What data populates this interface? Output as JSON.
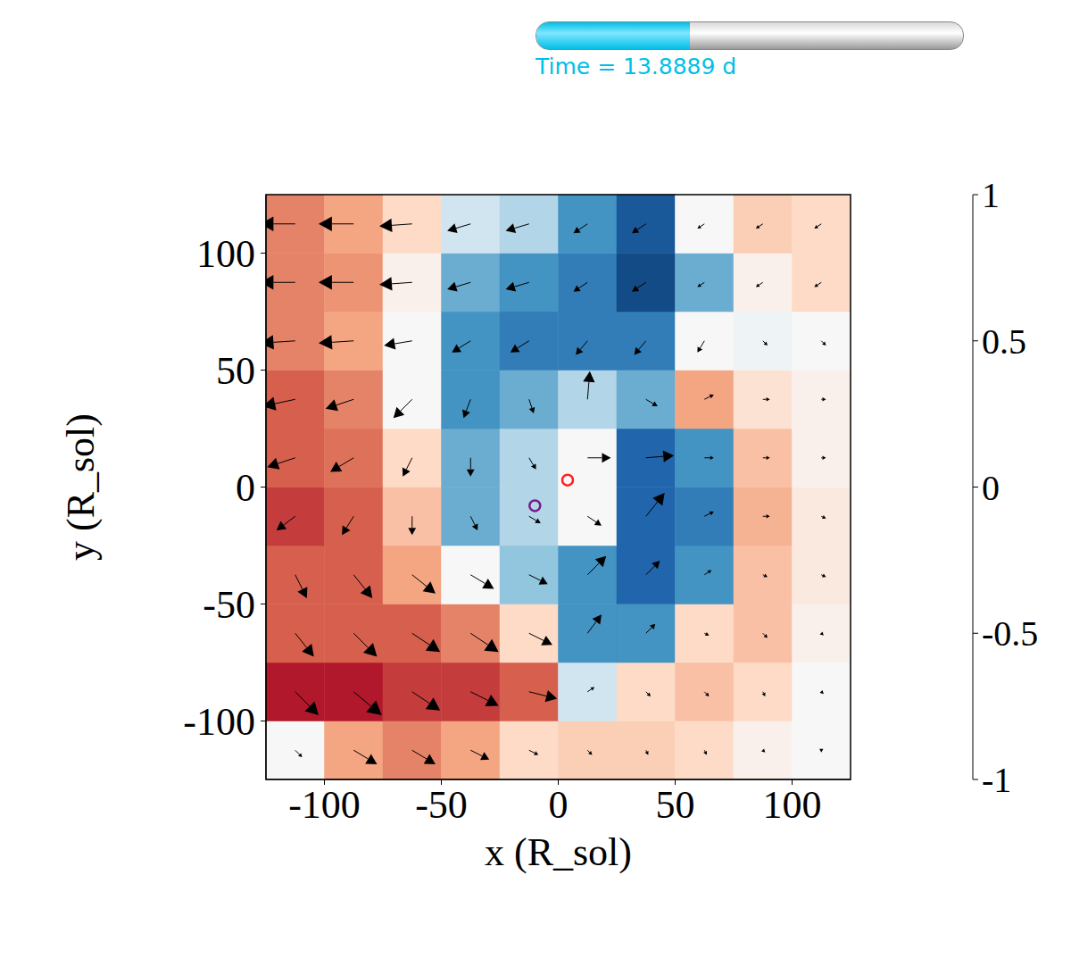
{
  "chart_data": {
    "type": "heatmap",
    "x_label": "x (R_sol)",
    "y_label": "y (R_sol)",
    "xlim": [
      -125,
      125
    ],
    "ylim": [
      -125,
      125
    ],
    "xticks": [
      -100,
      -50,
      0,
      50,
      100
    ],
    "yticks": [
      -100,
      -50,
      0,
      50,
      100
    ],
    "x_edges": [
      -125,
      -100,
      -75,
      -50,
      -25,
      0,
      25,
      50,
      75,
      100,
      125
    ],
    "y_edges": [
      -125,
      -100,
      -75,
      -50,
      -25,
      0,
      25,
      50,
      75,
      100,
      125
    ],
    "cells": [
      [
        0.0,
        0.4,
        0.5,
        0.4,
        0.2,
        0.25,
        0.25,
        0.2,
        0.05,
        0.0
      ],
      [
        0.8,
        0.8,
        0.7,
        0.7,
        0.6,
        -0.2,
        0.2,
        0.3,
        0.2,
        0.0
      ],
      [
        0.6,
        0.6,
        0.6,
        0.5,
        0.2,
        -0.6,
        -0.6,
        0.2,
        0.3,
        0.05
      ],
      [
        0.6,
        0.6,
        0.4,
        0.0,
        -0.4,
        -0.6,
        -0.8,
        -0.6,
        0.3,
        0.1
      ],
      [
        0.7,
        0.6,
        0.3,
        -0.5,
        -0.3,
        0.0,
        -0.8,
        -0.7,
        0.35,
        0.1
      ],
      [
        0.6,
        0.55,
        0.2,
        -0.5,
        -0.3,
        0.0,
        -0.8,
        -0.6,
        0.3,
        0.05
      ],
      [
        0.6,
        0.5,
        0.0,
        -0.6,
        -0.5,
        -0.3,
        -0.5,
        0.4,
        0.15,
        0.05
      ],
      [
        0.5,
        0.4,
        0.0,
        -0.6,
        -0.7,
        -0.7,
        -0.7,
        0.0,
        -0.05,
        0.0
      ],
      [
        0.5,
        0.45,
        0.05,
        -0.5,
        -0.6,
        -0.7,
        -0.9,
        -0.5,
        0.05,
        0.2
      ],
      [
        0.5,
        0.4,
        0.2,
        -0.2,
        -0.3,
        -0.6,
        -0.85,
        0.0,
        0.25,
        0.2
      ]
    ],
    "colorbar": {
      "range": [
        -1,
        1
      ],
      "ticks": [
        -1,
        -0.5,
        0,
        0.5,
        1
      ]
    },
    "vectors": {
      "x": [
        -112.5,
        -87.5,
        -62.5,
        -37.5,
        -12.5,
        12.5,
        37.5,
        62.5,
        87.5,
        112.5
      ],
      "y": [
        -112.5,
        -87.5,
        -62.5,
        -37.5,
        -12.5,
        12.5,
        37.5,
        62.5,
        87.5,
        112.5
      ],
      "u": [
        [
          3,
          10,
          10,
          8,
          4,
          2,
          1,
          1,
          1,
          0
        ],
        [
          10,
          12,
          12,
          12,
          12,
          3,
          2,
          2,
          1,
          1
        ],
        [
          8,
          10,
          12,
          12,
          10,
          6,
          4,
          2,
          2,
          1
        ],
        [
          5,
          8,
          10,
          10,
          8,
          8,
          6,
          3,
          2,
          2
        ],
        [
          -8,
          -5,
          0,
          3,
          5,
          6,
          8,
          4,
          3,
          2
        ],
        [
          -12,
          -10,
          -4,
          0,
          3,
          10,
          12,
          4,
          3,
          2
        ],
        [
          -14,
          -12,
          -8,
          -3,
          2,
          1,
          5,
          4,
          3,
          2
        ],
        [
          -15,
          -15,
          -12,
          -8,
          -8,
          -5,
          -5,
          -3,
          2,
          2
        ],
        [
          -15,
          -15,
          -14,
          -10,
          -10,
          -6,
          -6,
          -3,
          -3,
          -3
        ],
        [
          -15,
          -15,
          -14,
          -10,
          -10,
          -6,
          -6,
          -3,
          -3,
          -3
        ]
      ],
      "v": [
        [
          -3,
          -6,
          -6,
          -4,
          -2,
          -2,
          -2,
          -2,
          -1,
          -1
        ],
        [
          -10,
          -10,
          -8,
          -6,
          -3,
          2,
          -2,
          -2,
          -2,
          -1
        ],
        [
          -10,
          -10,
          -8,
          -8,
          -5,
          8,
          4,
          -1,
          -2,
          -1
        ],
        [
          -10,
          -10,
          -8,
          -6,
          -4,
          8,
          6,
          2,
          -1,
          -1
        ],
        [
          -6,
          -8,
          -8,
          -6,
          -3,
          -4,
          10,
          2,
          0,
          -1
        ],
        [
          -4,
          -6,
          -8,
          -8,
          -5,
          0,
          1,
          0,
          0,
          0
        ],
        [
          -3,
          -4,
          -8,
          -8,
          -6,
          12,
          -3,
          2,
          0,
          0
        ],
        [
          -1,
          -1,
          -2,
          -5,
          -5,
          -6,
          -6,
          -5,
          -2,
          -2
        ],
        [
          0,
          0,
          -1,
          -3,
          -3,
          -4,
          -4,
          -2,
          -2,
          -2
        ],
        [
          0,
          0,
          -1,
          -3,
          -3,
          -4,
          -4,
          -2,
          -2,
          -2
        ]
      ]
    },
    "markers": [
      {
        "x": 4,
        "y": 3,
        "color": "#ff2020"
      },
      {
        "x": -10,
        "y": -8,
        "color": "#7a1a8c"
      }
    ],
    "time_bar": {
      "label": "Time = 13.8889 d",
      "fraction": 0.36,
      "color": "#00bfe6"
    }
  }
}
